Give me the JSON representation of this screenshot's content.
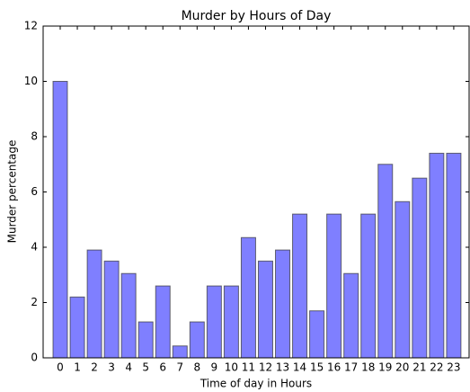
{
  "chart_data": {
    "type": "bar",
    "title": "Murder by Hours of Day",
    "x_label": "Time of day in Hours",
    "y_label": "Murder percentage",
    "categories": [
      "0",
      "1",
      "2",
      "3",
      "4",
      "5",
      "6",
      "7",
      "8",
      "9",
      "10",
      "11",
      "12",
      "13",
      "14",
      "15",
      "16",
      "17",
      "18",
      "19",
      "20",
      "21",
      "22",
      "23"
    ],
    "values": [
      10.0,
      2.2,
      3.9,
      3.5,
      3.05,
      1.3,
      2.6,
      0.43,
      1.3,
      2.6,
      2.6,
      4.35,
      3.5,
      3.9,
      5.2,
      1.7,
      5.2,
      3.05,
      5.2,
      7.0,
      5.65,
      6.5,
      7.4,
      7.4
    ],
    "color": "#7f7fff",
    "ylim": [
      0,
      12
    ],
    "yticks": [
      0,
      2,
      4,
      6,
      8,
      10,
      12
    ],
    "grid": false
  }
}
